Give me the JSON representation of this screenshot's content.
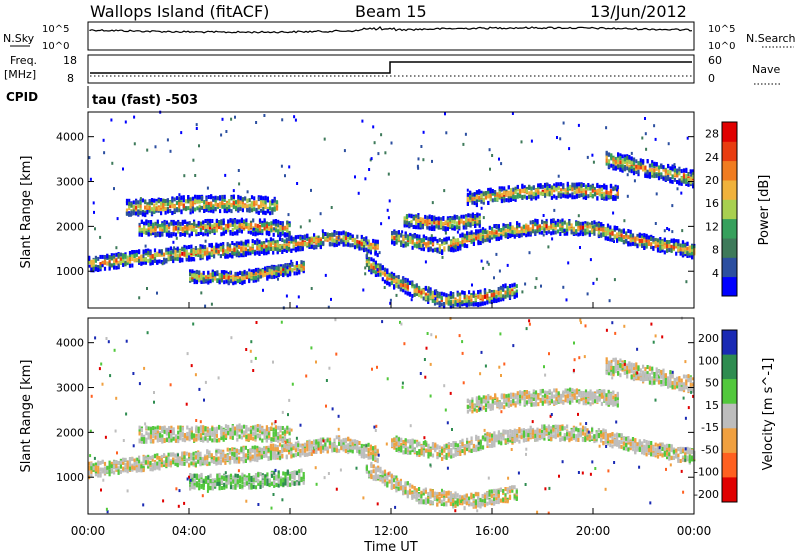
{
  "header": {
    "title": "Wallops Island (fitACF)",
    "beam": "Beam 15",
    "date": "13/Jun/2012"
  },
  "params": {
    "nsky_label": "N.Sky",
    "nsearch_label": "N.Search",
    "nsky_ticks": [
      "10^5",
      "10^0"
    ],
    "nsearch_ticks": [
      "10^5",
      "10^0"
    ],
    "freq_label": "Freq.",
    "freq_unit": "[MHz]",
    "freq_ticks": [
      "18",
      "8"
    ],
    "nave_label": "Nave",
    "nave_ticks": [
      "60",
      "0"
    ],
    "cpid_label": "CPID",
    "cpid_text": "tau (fast) -503"
  },
  "colors": {
    "power_scale": [
      "#0000ff",
      "#2c4fa0",
      "#3e7a5a",
      "#36a05c",
      "#a8d050",
      "#f0b23c",
      "#f07c20",
      "#e83c10",
      "#e00000"
    ],
    "velocity_scale": [
      "#e00000",
      "#ff6020",
      "#f0a040",
      "#bebebe",
      "#52c83c",
      "#2e8c50",
      "#1a2ab4"
    ],
    "ground_scatter": "#bdbdbd"
  },
  "chart_data": [
    {
      "type": "heatmap",
      "title": "",
      "ylabel": "Slant Range [km]",
      "xlabel": "",
      "ylim": [
        180,
        4550
      ],
      "xlim": [
        0,
        24
      ],
      "yticks": [
        "1000",
        "2000",
        "3000",
        "4000"
      ],
      "xticks": [
        "00:00",
        "04:00",
        "08:00",
        "12:00",
        "16:00",
        "20:00",
        "00:00"
      ],
      "colorbar": {
        "label": "Power [dB]",
        "ticks": [
          "4",
          "8",
          "12",
          "16",
          "20",
          "24",
          "28"
        ],
        "range": [
          0,
          30
        ]
      },
      "bands": [
        {
          "t": [
            0.0,
            2.0,
            4.0,
            6.0,
            8.0,
            10.0,
            11.5
          ],
          "r": [
            1150,
            1300,
            1400,
            1500,
            1600,
            1750,
            1500
          ],
          "width": 220
        },
        {
          "t": [
            2.0,
            4.0,
            6.0,
            8.0
          ],
          "r": [
            1950,
            1950,
            2000,
            1950
          ],
          "width": 230
        },
        {
          "t": [
            1.5,
            3.0,
            4.5,
            6.0,
            7.5
          ],
          "r": [
            2400,
            2450,
            2500,
            2500,
            2450
          ],
          "width": 250
        },
        {
          "t": [
            4.0,
            6.0,
            8.5
          ],
          "r": [
            880,
            850,
            1100
          ],
          "width": 180
        },
        {
          "t": [
            11.0,
            12.0,
            13.0,
            14.0,
            15.5,
            17.0
          ],
          "r": [
            1200,
            800,
            550,
            350,
            400,
            600
          ],
          "width": 220
        },
        {
          "t": [
            12.0,
            14.0,
            16.0,
            18.0,
            20.0,
            22.0,
            24.0
          ],
          "r": [
            1750,
            1550,
            1850,
            2000,
            1950,
            1650,
            1450
          ],
          "width": 220
        },
        {
          "t": [
            15.0,
            17.0,
            19.0,
            21.0
          ],
          "r": [
            2600,
            2750,
            2800,
            2750
          ],
          "width": 220
        },
        {
          "t": [
            20.5,
            22.0,
            24.0
          ],
          "r": [
            3500,
            3300,
            3050
          ],
          "width": 250
        },
        {
          "t": [
            12.5,
            14.0,
            15.5
          ],
          "r": [
            2150,
            2050,
            2150
          ],
          "width": 200
        }
      ]
    },
    {
      "type": "heatmap",
      "title": "",
      "ylabel": "Slant Range [km]",
      "xlabel": "Time UT",
      "ylim": [
        180,
        4550
      ],
      "xlim": [
        0,
        24
      ],
      "yticks": [
        "1000",
        "2000",
        "3000",
        "4000"
      ],
      "xticks": [
        "00:00",
        "04:00",
        "08:00",
        "12:00",
        "16:00",
        "20:00",
        "00:00"
      ],
      "colorbar": {
        "label": "Velocity [m s^-1]",
        "ticks": [
          "200",
          "100",
          "50",
          "15",
          "-15",
          "-50",
          "-100",
          "-200"
        ],
        "range": [
          -250,
          250
        ]
      },
      "bands": [
        {
          "t": [
            0.0,
            2.0,
            4.0,
            6.0,
            8.0,
            10.0,
            11.5
          ],
          "r": [
            1150,
            1300,
            1400,
            1500,
            1600,
            1750,
            1500
          ],
          "width": 220,
          "vel": 0
        },
        {
          "t": [
            2.0,
            4.0,
            6.0,
            8.0
          ],
          "r": [
            1950,
            1950,
            2000,
            1950
          ],
          "width": 230,
          "vel": 0
        },
        {
          "t": [
            4.0,
            6.0,
            8.5
          ],
          "r": [
            900,
            900,
            1000
          ],
          "width": 220,
          "vel": 30
        },
        {
          "t": [
            12.0,
            14.0,
            16.0,
            18.0,
            20.0,
            22.0,
            24.0
          ],
          "r": [
            1750,
            1550,
            1850,
            2000,
            1950,
            1650,
            1450
          ],
          "width": 220,
          "vel": 0
        },
        {
          "t": [
            11.0,
            13.0,
            15.0,
            17.0
          ],
          "r": [
            1200,
            600,
            450,
            650
          ],
          "width": 220,
          "vel": 0
        },
        {
          "t": [
            20.5,
            22.0,
            24.0
          ],
          "r": [
            3500,
            3300,
            3050
          ],
          "width": 250,
          "vel": 0
        },
        {
          "t": [
            15.0,
            17.0,
            19.0,
            21.0
          ],
          "r": [
            2600,
            2750,
            2800,
            2750
          ],
          "width": 220,
          "vel": 0
        }
      ]
    }
  ]
}
